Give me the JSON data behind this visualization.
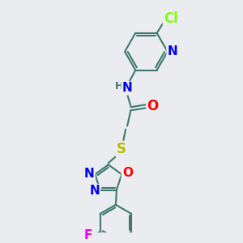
{
  "background_color": "#eaecf0",
  "bond_color": "#3d7a6a",
  "bond_width": 1.5,
  "atom_colors": {
    "Cl": "#7fff00",
    "N": "#0000ee",
    "O": "#ff0000",
    "S": "#bbbb00",
    "F": "#ee00ee",
    "C": "#3d7a6a"
  },
  "fs": 10,
  "xlim": [
    0,
    10
  ],
  "ylim": [
    -12,
    2
  ]
}
